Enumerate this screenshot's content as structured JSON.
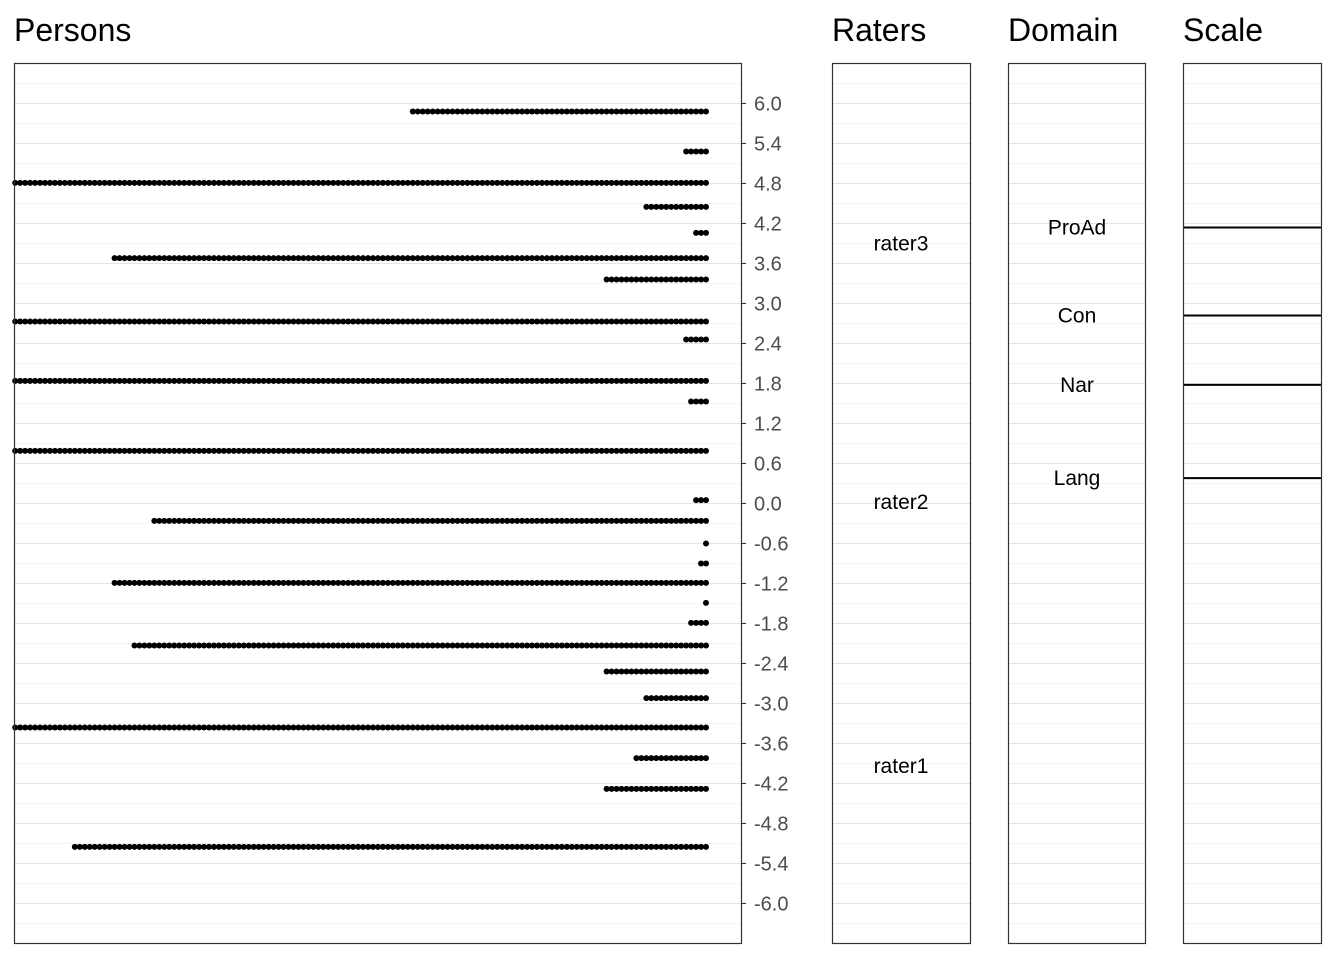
{
  "chart_data": {
    "type": "scatter",
    "titles": {
      "persons": "Persons",
      "raters": "Raters",
      "domain": "Domain",
      "scale": "Scale"
    },
    "ylim": [
      -6.6,
      6.6
    ],
    "y_ticks": [
      6.0,
      5.4,
      4.8,
      4.2,
      3.6,
      3.0,
      2.4,
      1.8,
      1.2,
      0.6,
      0.0,
      -0.6,
      -1.2,
      -1.8,
      -2.4,
      -3.0,
      -3.6,
      -4.2,
      -4.8,
      -5.4,
      -6.0
    ],
    "y_tick_labels": [
      "6.0",
      "5.4",
      "4.8",
      "4.2",
      "3.6",
      "3.0",
      "2.4",
      "1.8",
      "1.2",
      "0.6",
      "0.0",
      "-0.6",
      "-1.2",
      "-1.8",
      "-2.4",
      "-3.0",
      "-3.6",
      "-4.2",
      "-4.8",
      "-5.4",
      "-6.0"
    ],
    "grid": true,
    "persons": [
      {
        "y": 5.88,
        "count": 60
      },
      {
        "y": 5.28,
        "count": 5
      },
      {
        "y": 4.81,
        "count": 140
      },
      {
        "y": 4.45,
        "count": 13
      },
      {
        "y": 4.06,
        "count": 3
      },
      {
        "y": 3.68,
        "count": 120
      },
      {
        "y": 3.36,
        "count": 21
      },
      {
        "y": 2.73,
        "count": 140
      },
      {
        "y": 2.46,
        "count": 5
      },
      {
        "y": 1.84,
        "count": 140
      },
      {
        "y": 1.53,
        "count": 4
      },
      {
        "y": 0.79,
        "count": 140
      },
      {
        "y": 0.05,
        "count": 3
      },
      {
        "y": -0.26,
        "count": 112
      },
      {
        "y": -0.6,
        "count": 1
      },
      {
        "y": -0.9,
        "count": 2
      },
      {
        "y": -1.19,
        "count": 120
      },
      {
        "y": -1.49,
        "count": 1
      },
      {
        "y": -1.79,
        "count": 4
      },
      {
        "y": -2.13,
        "count": 116
      },
      {
        "y": -2.52,
        "count": 21
      },
      {
        "y": -2.92,
        "count": 13
      },
      {
        "y": -3.36,
        "count": 140
      },
      {
        "y": -3.82,
        "count": 15
      },
      {
        "y": -4.28,
        "count": 21
      },
      {
        "y": -5.15,
        "count": 128
      }
    ],
    "raters": [
      {
        "name": "rater3",
        "value": 3.9
      },
      {
        "name": "rater2",
        "value": 0.02
      },
      {
        "name": "rater1",
        "value": -3.94
      }
    ],
    "domains": [
      {
        "name": "ProAd",
        "value": 4.14
      },
      {
        "name": "Con",
        "value": 2.82
      },
      {
        "name": "Nar",
        "value": 1.78
      },
      {
        "name": "Lang",
        "value": 0.38
      }
    ],
    "scale_thresholds": [
      4.14,
      2.82,
      1.78,
      0.38
    ]
  }
}
